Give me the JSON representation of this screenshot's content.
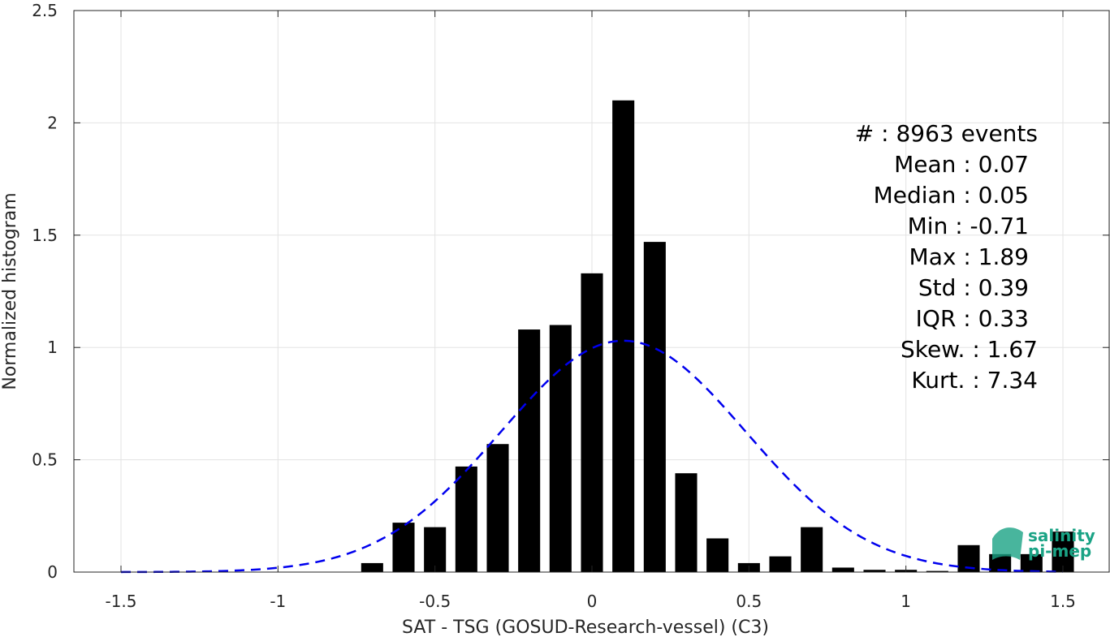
{
  "chart_data": {
    "type": "bar",
    "xlabel": "SAT - TSG (GOSUD-Research-vessel) (C3)",
    "ylabel": "Normalized histogram",
    "xlim": [
      -1.65,
      1.65
    ],
    "ylim": [
      0,
      2.5
    ],
    "xticks": [
      -1.5,
      -1,
      -0.5,
      0,
      0.5,
      1,
      1.5
    ],
    "xtick_labels": [
      "-1.5",
      "-1",
      "-0.5",
      "0",
      "0.5",
      "1",
      "1.5"
    ],
    "yticks": [
      0,
      0.5,
      1,
      1.5,
      2,
      2.5
    ],
    "ytick_labels": [
      "0",
      "0.5",
      "1",
      "1.5",
      "2",
      "2.5"
    ],
    "grid": true,
    "bar_color": "#000000",
    "bar_width": 0.07,
    "bars": [
      {
        "x": -0.7,
        "y": 0.04
      },
      {
        "x": -0.6,
        "y": 0.22
      },
      {
        "x": -0.5,
        "y": 0.2
      },
      {
        "x": -0.4,
        "y": 0.47
      },
      {
        "x": -0.3,
        "y": 0.57
      },
      {
        "x": -0.2,
        "y": 1.08
      },
      {
        "x": -0.1,
        "y": 1.1
      },
      {
        "x": 0.0,
        "y": 1.33
      },
      {
        "x": 0.1,
        "y": 2.1
      },
      {
        "x": 0.2,
        "y": 1.47
      },
      {
        "x": 0.3,
        "y": 0.44
      },
      {
        "x": 0.4,
        "y": 0.15
      },
      {
        "x": 0.5,
        "y": 0.04
      },
      {
        "x": 0.6,
        "y": 0.07
      },
      {
        "x": 0.7,
        "y": 0.2
      },
      {
        "x": 0.8,
        "y": 0.02
      },
      {
        "x": 0.9,
        "y": 0.01
      },
      {
        "x": 1.0,
        "y": 0.01
      },
      {
        "x": 1.1,
        "y": 0.005
      },
      {
        "x": 1.2,
        "y": 0.12
      },
      {
        "x": 1.3,
        "y": 0.08
      },
      {
        "x": 1.4,
        "y": 0.08
      },
      {
        "x": 1.5,
        "y": 0.18
      }
    ],
    "fit_curve": {
      "type": "gaussian",
      "mean": 0.1,
      "peak": 1.03,
      "sigma": 0.39,
      "x_range": [
        -1.5,
        1.5
      ],
      "color": "#0000ee",
      "style": "dashed"
    },
    "stats": [
      "#  : 8963 events",
      "Mean : 0.07",
      "Median : 0.05",
      "Min : -0.71",
      "Max : 1.89",
      "Std : 0.39",
      "IQR : 0.33",
      "Skew. : 1.67",
      "Kurt. : 7.34"
    ],
    "logo": {
      "line1": "salinity",
      "line2": "pi-mep",
      "color": "#1aa385"
    }
  }
}
